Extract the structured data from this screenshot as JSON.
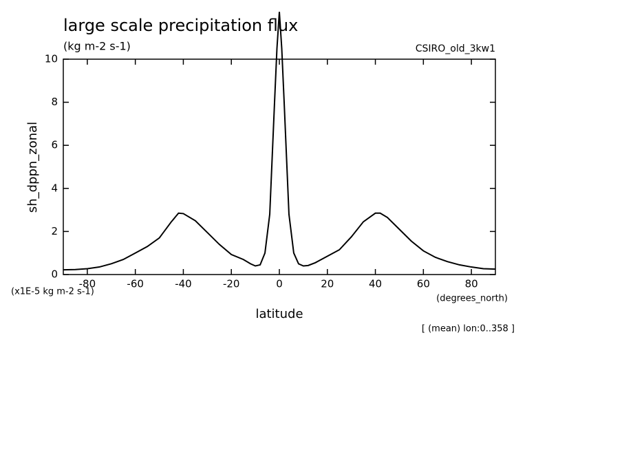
{
  "chart_data": {
    "type": "line",
    "title": "large scale precipitation flux",
    "subtitle": "(kg m-2 s-1)",
    "model_label": "CSIRO_old_3kw1",
    "ylabel": "sh_dppn_zonal",
    "xlabel": "latitude",
    "x_units": "(degrees_north)",
    "y_scale_note": "(x1E-5 kg m-2 s-1)",
    "footnote": "[ (mean) lon:0..358 ]",
    "x": [
      -90,
      -85,
      -80,
      -75,
      -70,
      -65,
      -60,
      -55,
      -50,
      -45,
      -42,
      -40,
      -35,
      -30,
      -25,
      -20,
      -15,
      -12,
      -10,
      -8,
      -6,
      -4,
      -2,
      -1,
      0,
      1,
      2,
      4,
      6,
      8,
      10,
      12,
      15,
      20,
      25,
      30,
      35,
      40,
      42,
      45,
      50,
      55,
      60,
      65,
      70,
      75,
      80,
      85,
      90
    ],
    "series": [
      {
        "color": "#000000",
        "values": [
          0.22,
          0.23,
          0.27,
          0.35,
          0.5,
          0.7,
          1.0,
          1.3,
          1.7,
          2.45,
          2.85,
          2.83,
          2.5,
          1.95,
          1.4,
          0.93,
          0.7,
          0.5,
          0.4,
          0.45,
          1.0,
          2.8,
          8.0,
          10.5,
          12.2,
          10.5,
          8.0,
          2.8,
          1.0,
          0.5,
          0.4,
          0.42,
          0.55,
          0.85,
          1.15,
          1.75,
          2.45,
          2.85,
          2.85,
          2.65,
          2.1,
          1.55,
          1.1,
          0.8,
          0.6,
          0.45,
          0.35,
          0.27,
          0.25
        ]
      }
    ],
    "xlim": [
      -90,
      90
    ],
    "xticks": [
      -80,
      -60,
      -40,
      -20,
      0,
      20,
      40,
      60,
      80
    ],
    "ylim": [
      0,
      10
    ],
    "yticks": [
      0,
      2,
      4,
      6,
      8,
      10
    ],
    "grid": false
  }
}
